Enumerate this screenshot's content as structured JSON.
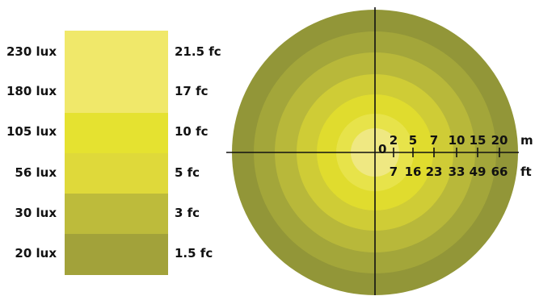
{
  "legend": {
    "levels": [
      {
        "lux": "230 lux",
        "fc": "21.5 fc",
        "color": "#f0e86a"
      },
      {
        "lux": "180 lux",
        "fc": "17 fc",
        "color": "#efe85a"
      },
      {
        "lux": "105 lux",
        "fc": "10 fc",
        "color": "#e5e230"
      },
      {
        "lux": "56 lux",
        "fc": "5 fc",
        "color": "#dfd93a"
      },
      {
        "lux": "30 lux",
        "fc": "3 fc",
        "color": "#bdbb3b"
      },
      {
        "lux": "20 lux",
        "fc": "1.5 fc",
        "color": "#a2a23a"
      }
    ]
  },
  "diagram": {
    "ring_colors": [
      "#929638",
      "#a3a63a",
      "#b8b83a",
      "#cfcc36",
      "#e0dc2e",
      "#e7e34a",
      "#efe882"
    ],
    "axis_color": "#111111",
    "origin_label": "0",
    "meters": {
      "unit": "m",
      "ticks": [
        {
          "value": 2,
          "label": "2"
        },
        {
          "value": 5,
          "label": "5"
        },
        {
          "value": 7,
          "label": "7"
        },
        {
          "value": 10,
          "label": "10"
        },
        {
          "value": 15,
          "label": "15"
        },
        {
          "value": 20,
          "label": "20"
        }
      ]
    },
    "feet": {
      "unit": "ft",
      "ticks": [
        {
          "value": 7,
          "label": "7"
        },
        {
          "value": 16,
          "label": "16"
        },
        {
          "value": 23,
          "label": "23"
        },
        {
          "value": 33,
          "label": "33"
        },
        {
          "value": 49,
          "label": "49"
        },
        {
          "value": 66,
          "label": "66"
        }
      ]
    }
  }
}
